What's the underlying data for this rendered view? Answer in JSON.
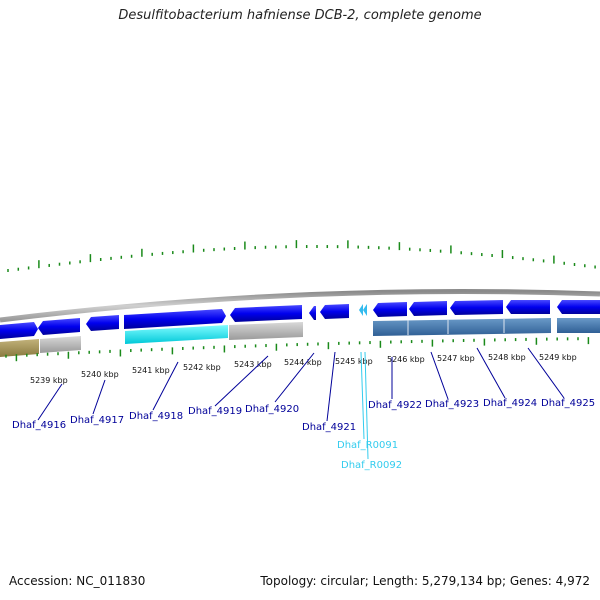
{
  "title": "Desulfitobacterium hafniense DCB-2, complete genome",
  "footer": {
    "accession": "Accession: NC_011830",
    "stats": "Topology: circular; Length: 5,279,134 bp; Genes: 4,972"
  },
  "colors": {
    "gene_forward": "#0000ee",
    "rna": "#00e5ee",
    "scale_tick": "#1a8a1a",
    "backbone": "#a9a9a9",
    "link": "#000099",
    "link_rna": "#33ccee"
  },
  "ticks": [
    "5239 kbp",
    "5240 kbp",
    "5241 kbp",
    "5242 kbp",
    "5243 kbp",
    "5244 kbp",
    "5245 kbp",
    "5246 kbp",
    "5247 kbp",
    "5248 kbp",
    "5249 kbp"
  ],
  "genes": [
    {
      "label": "Dhaf_4916",
      "type": "gene"
    },
    {
      "label": "Dhaf_4917",
      "type": "gene"
    },
    {
      "label": "Dhaf_4918",
      "type": "gene"
    },
    {
      "label": "Dhaf_4919",
      "type": "gene"
    },
    {
      "label": "Dhaf_4920",
      "type": "gene"
    },
    {
      "label": "Dhaf_4921",
      "type": "gene"
    },
    {
      "label": "Dhaf_4922",
      "type": "gene"
    },
    {
      "label": "Dhaf_4923",
      "type": "gene"
    },
    {
      "label": "Dhaf_4924",
      "type": "gene"
    },
    {
      "label": "Dhaf_4925",
      "type": "gene"
    },
    {
      "label": "Dhaf_R0091",
      "type": "rna"
    },
    {
      "label": "Dhaf_R0092",
      "type": "rna"
    }
  ]
}
